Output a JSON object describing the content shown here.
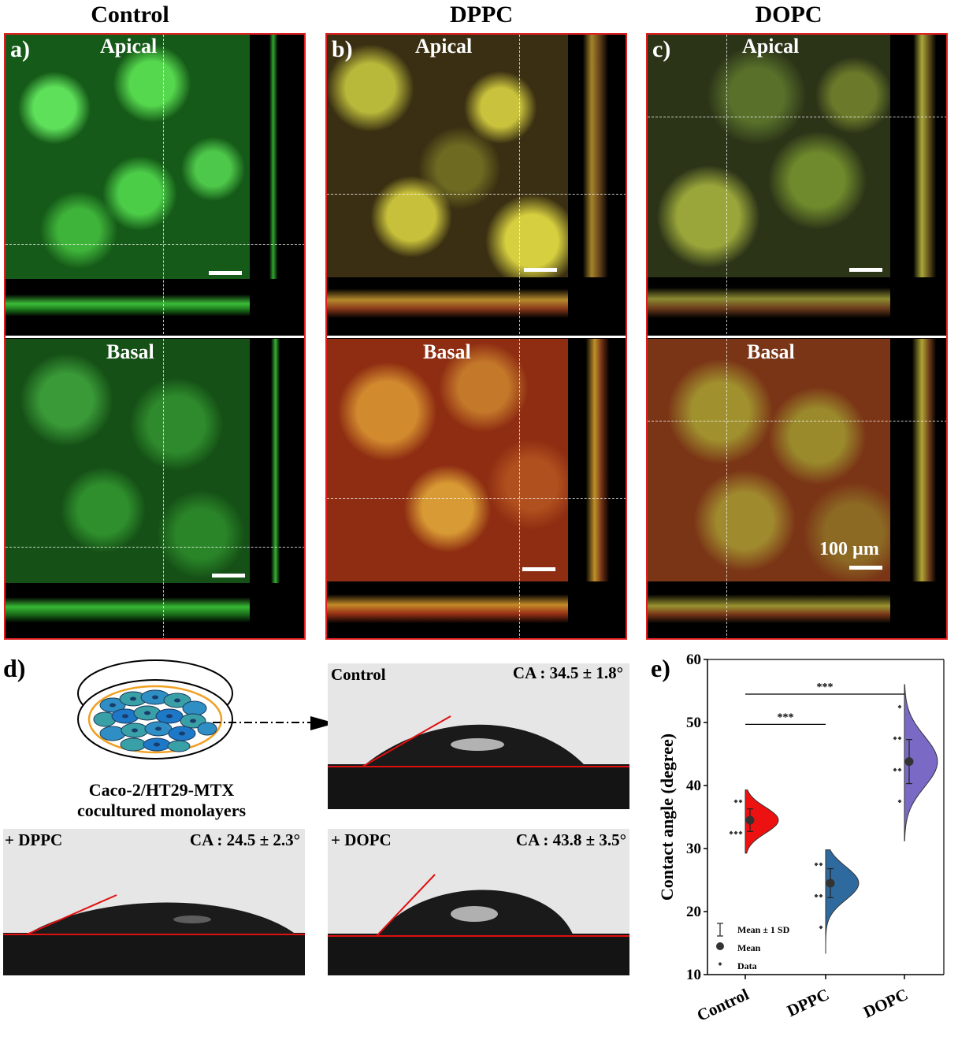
{
  "columns": [
    "Control",
    "DPPC",
    "DOPC"
  ],
  "panel_labels": [
    "a)",
    "b)",
    "c)"
  ],
  "apical_label": "Apical",
  "basal_label": "Basal",
  "scale_text": "100 µm",
  "panel_d": {
    "label": "d)",
    "diagram_caption": [
      "Caco-2/HT29-MTX",
      "cocultured monolayers"
    ],
    "images": [
      {
        "name": "Control",
        "ca": "CA : 34.5 ± 1.8°"
      },
      {
        "name": "+ DPPC",
        "ca": "CA : 24.5 ± 2.3°"
      },
      {
        "name": "+ DOPC",
        "ca": "CA : 43.8 ± 3.5°"
      }
    ]
  },
  "colors": {
    "control": "#ee1111",
    "dppc": "#2f6a9e",
    "dopc": "#7a6ac6",
    "border": "#e02020"
  },
  "chart_data": {
    "type": "violin",
    "panel_label": "e)",
    "categories": [
      "Control",
      "DPPC",
      "DOPC"
    ],
    "ylabel": "Contact angle (degree)",
    "ylim": [
      10,
      60
    ],
    "yticks": [
      10,
      20,
      30,
      40,
      50,
      60
    ],
    "means": [
      34.5,
      24.5,
      43.8
    ],
    "sds": [
      1.8,
      2.3,
      3.5
    ],
    "data_points": [
      [
        32.5,
        32.5,
        32.5,
        37.5,
        37.5
      ],
      [
        17.5,
        22.5,
        22.5,
        27.5,
        27.5
      ],
      [
        37.5,
        42.5,
        42.5,
        47.5,
        47.5,
        52.5
      ]
    ],
    "significance": [
      {
        "from": "Control",
        "to": "DPPC",
        "label": "***",
        "y": 49.7
      },
      {
        "from": "Control",
        "to": "DOPC",
        "label": "***",
        "y": 54.5
      }
    ],
    "legend": [
      "Mean ± 1 SD",
      "Mean",
      "Data"
    ]
  }
}
